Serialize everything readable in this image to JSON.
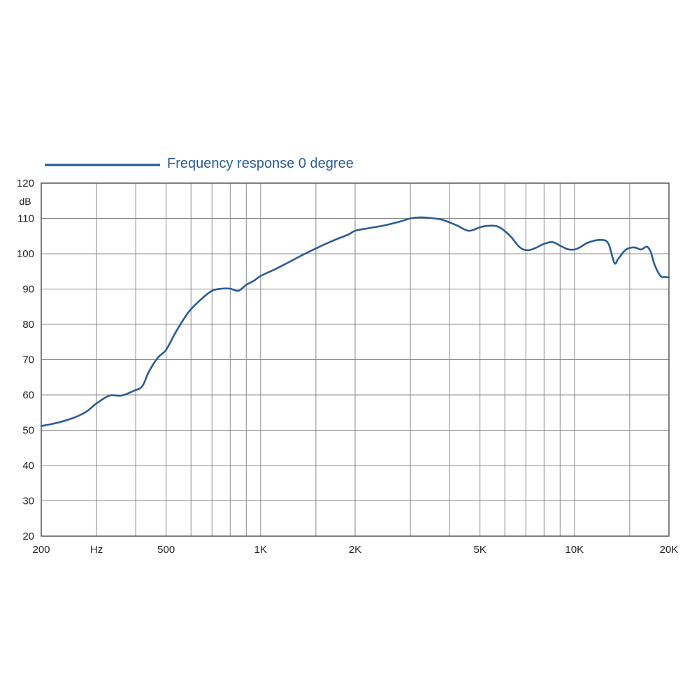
{
  "chart_data": {
    "type": "line",
    "title": "",
    "xlabel": "",
    "ylabel": "",
    "y_unit_label": "dB",
    "x_scale": "log",
    "xlim": [
      200,
      20000
    ],
    "ylim": [
      20,
      120
    ],
    "grid": true,
    "legend_position": "top-left",
    "colors": {
      "series": "#2a5c94",
      "legend_text": "#2a5c94",
      "grid": "#888888",
      "frame": "#555555",
      "text": "#222222"
    },
    "y_ticks": [
      20,
      30,
      40,
      50,
      60,
      70,
      80,
      90,
      100,
      110,
      120
    ],
    "x_gridlines": [
      200,
      300,
      400,
      500,
      600,
      700,
      800,
      900,
      1000,
      1500,
      2000,
      3000,
      4000,
      5000,
      6000,
      7000,
      8000,
      9000,
      10000,
      15000,
      20000
    ],
    "x_tick_labels": [
      {
        "x": 200,
        "label": "200"
      },
      {
        "x": 300,
        "label": "Hz"
      },
      {
        "x": 500,
        "label": "500"
      },
      {
        "x": 1000,
        "label": "1K"
      },
      {
        "x": 2000,
        "label": "2K"
      },
      {
        "x": 5000,
        "label": "5K"
      },
      {
        "x": 10000,
        "label": "10K"
      },
      {
        "x": 20000,
        "label": "20K"
      }
    ],
    "series": [
      {
        "name": "Frequency response 0 degree",
        "x": [
          200,
          220,
          240,
          260,
          280,
          300,
          330,
          360,
          395,
          420,
          440,
          470,
          500,
          540,
          590,
          650,
          700,
          750,
          800,
          850,
          900,
          950,
          1000,
          1100,
          1200,
          1350,
          1500,
          1700,
          1900,
          2000,
          2200,
          2500,
          2800,
          3000,
          3200,
          3500,
          3800,
          4200,
          4600,
          5000,
          5300,
          5700,
          6200,
          6700,
          7100,
          7500,
          8000,
          8500,
          9000,
          9500,
          10000,
          10500,
          11000,
          12000,
          12800,
          13400,
          13800,
          14600,
          15500,
          16300,
          17000,
          17500,
          18000,
          18800,
          19400,
          20000
        ],
        "y": [
          51.2,
          51.9,
          52.8,
          53.9,
          55.4,
          57.6,
          59.8,
          59.8,
          61.2,
          62.5,
          66.5,
          70.5,
          72.8,
          78.2,
          83.5,
          87.3,
          89.5,
          90.1,
          90.1,
          89.5,
          91.2,
          92.3,
          93.7,
          95.4,
          97.1,
          99.5,
          101.5,
          103.7,
          105.4,
          106.5,
          107.2,
          108.1,
          109.2,
          110.0,
          110.3,
          110.1,
          109.6,
          108.1,
          106.5,
          107.5,
          107.9,
          107.7,
          105.3,
          101.8,
          101.0,
          101.6,
          102.8,
          103.3,
          102.3,
          101.3,
          101.2,
          102.0,
          103.1,
          103.9,
          103.0,
          97.4,
          98.6,
          101.2,
          101.8,
          101.2,
          102.0,
          100.5,
          96.9,
          93.7,
          93.4,
          93.3
        ]
      }
    ]
  }
}
